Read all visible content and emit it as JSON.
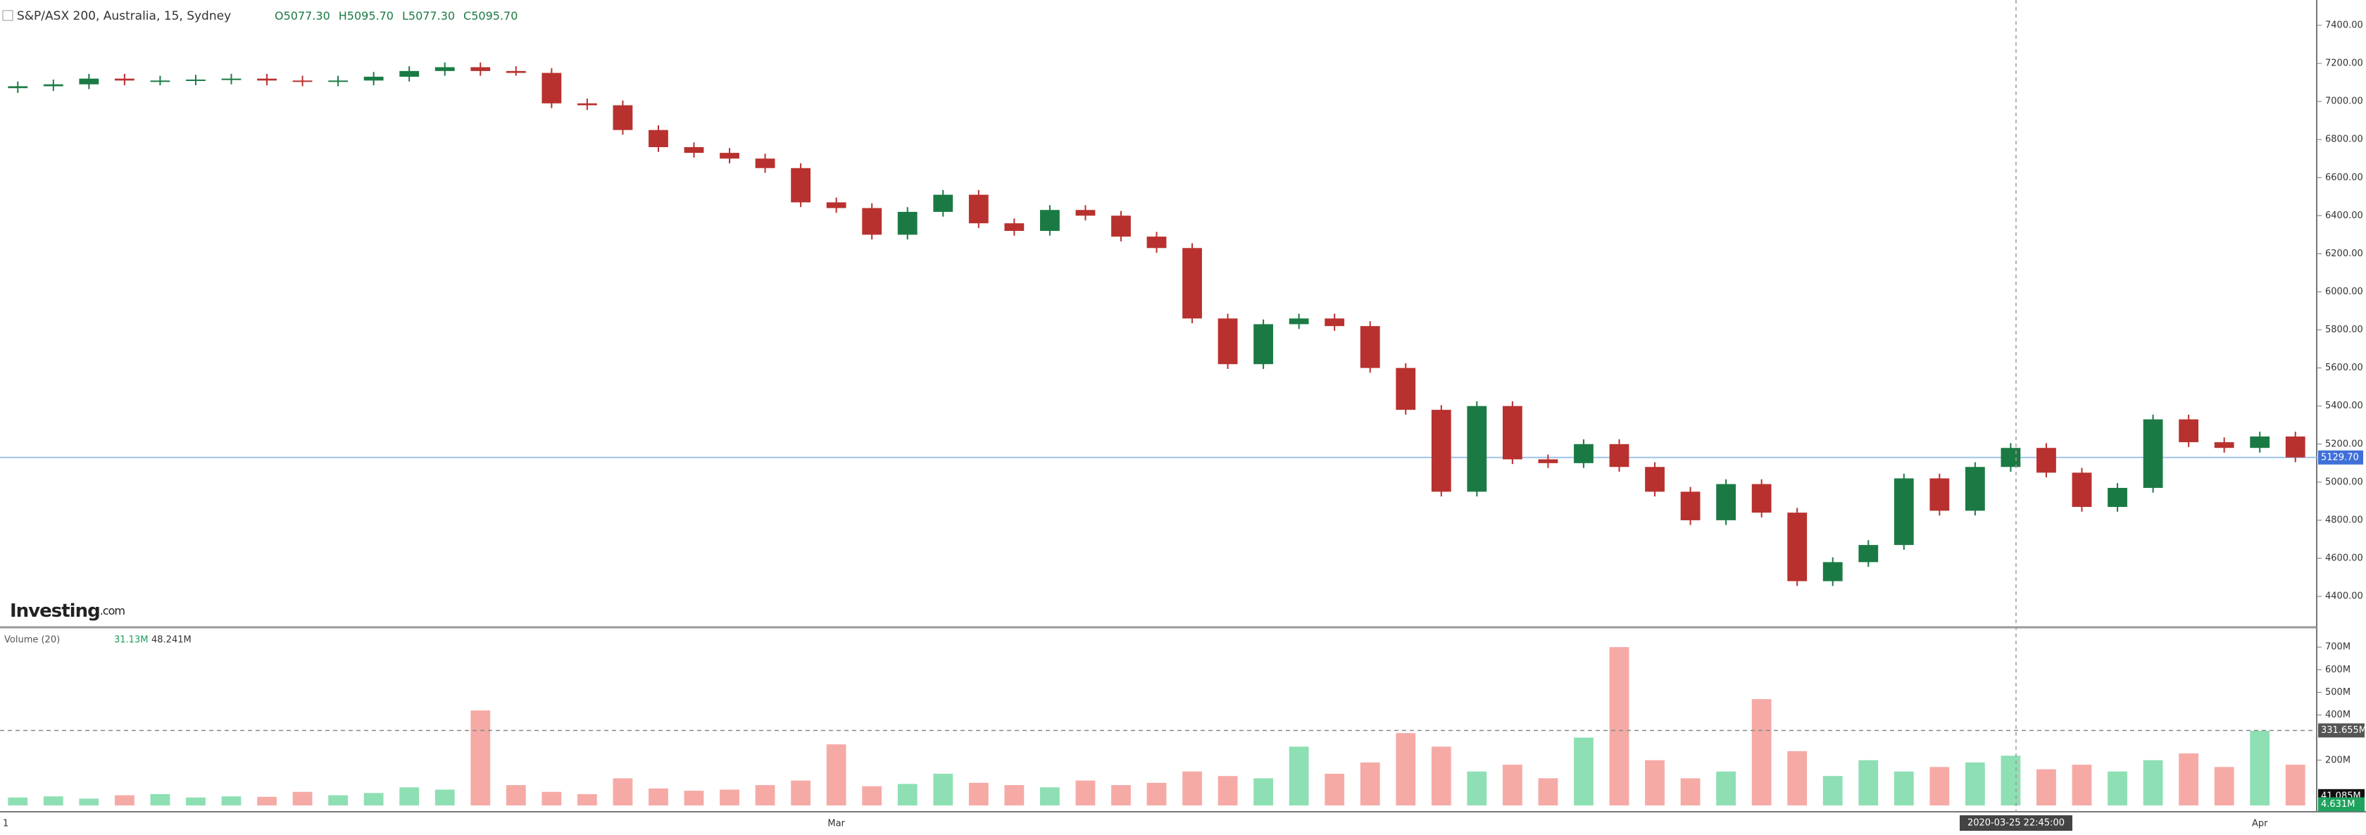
{
  "chart_data": {
    "type": "candlestick",
    "title": "S&P/ASX 200, Australia, 15, Sydney",
    "ohlc_labels": [
      "O5077.30",
      "H5095.70",
      "L5077.30",
      "C5095.70"
    ],
    "logo": [
      "Investing",
      ".com"
    ],
    "categories": [
      "1",
      null,
      null,
      null,
      null,
      null,
      null,
      null,
      null,
      null,
      null,
      null,
      null,
      null,
      null,
      null,
      null,
      null,
      null,
      null,
      null,
      null,
      null,
      "Mar",
      null,
      null,
      null,
      null,
      null,
      null,
      null,
      null,
      null,
      null,
      null,
      null,
      null,
      null,
      null,
      null,
      null,
      null,
      null,
      null,
      null,
      null,
      null,
      null,
      null,
      null,
      null,
      null,
      null,
      null,
      null,
      null,
      null,
      null,
      null,
      null,
      null,
      null,
      null,
      "Apr",
      null
    ],
    "open": [
      7070,
      7080,
      7090,
      7120,
      7110,
      7110,
      7115,
      7120,
      7110,
      7105,
      7110,
      7130,
      7160,
      7180,
      7160,
      7150,
      6990,
      6980,
      6850,
      6760,
      6730,
      6700,
      6650,
      6470,
      6440,
      6300,
      6420,
      6510,
      6360,
      6320,
      6430,
      6400,
      6290,
      6230,
      5860,
      5620,
      5830,
      5860,
      5820,
      5600,
      5380,
      4950,
      5400,
      5120,
      5100,
      5200,
      5080,
      4950,
      4800,
      4990,
      4840,
      4480,
      4580,
      4670,
      5020,
      4850,
      5080,
      5180,
      5050,
      4870,
      4970,
      5330,
      5210,
      5180,
      5240
    ],
    "high": [
      7105,
      7115,
      7145,
      7145,
      7135,
      7140,
      7145,
      7145,
      7135,
      7135,
      7155,
      7185,
      7205,
      7205,
      7185,
      7175,
      7015,
      7005,
      6875,
      6785,
      6755,
      6725,
      6675,
      6495,
      6465,
      6445,
      6535,
      6535,
      6385,
      6455,
      6455,
      6425,
      6315,
      6255,
      5885,
      5855,
      5885,
      5885,
      5845,
      5625,
      5405,
      5425,
      5425,
      5145,
      5225,
      5225,
      5105,
      4975,
      5015,
      5015,
      4865,
      4605,
      4695,
      5045,
      5045,
      5105,
      5205,
      5205,
      5075,
      4995,
      5355,
      5355,
      5235,
      5265,
      5265
    ],
    "low": [
      7045,
      7055,
      7065,
      7085,
      7085,
      7085,
      7090,
      7085,
      7080,
      7080,
      7085,
      7105,
      7135,
      7135,
      7135,
      6965,
      6955,
      6825,
      6735,
      6705,
      6675,
      6625,
      6445,
      6415,
      6275,
      6275,
      6395,
      6335,
      6295,
      6295,
      6375,
      6265,
      6205,
      5835,
      5595,
      5595,
      5805,
      5795,
      5575,
      5355,
      4925,
      4925,
      5095,
      5075,
      5075,
      5055,
      4925,
      4775,
      4775,
      4815,
      4455,
      4455,
      4555,
      4645,
      4825,
      4825,
      5055,
      5025,
      4845,
      4845,
      4945,
      5185,
      5155,
      5155,
      5105
    ],
    "close": [
      7080,
      7090,
      7120,
      7110,
      7110,
      7115,
      7120,
      7110,
      7105,
      7110,
      7130,
      7160,
      7180,
      7160,
      7150,
      6990,
      6980,
      6850,
      6760,
      6730,
      6700,
      6650,
      6470,
      6440,
      6300,
      6420,
      6510,
      6360,
      6320,
      6430,
      6400,
      6290,
      6230,
      5860,
      5620,
      5830,
      5860,
      5820,
      5600,
      5380,
      4950,
      5400,
      5120,
      5100,
      5200,
      5080,
      4950,
      4800,
      4990,
      4840,
      4480,
      4580,
      4670,
      5020,
      4850,
      5080,
      5180,
      5050,
      4870,
      4970,
      5330,
      5210,
      5180,
      5240,
      5130
    ],
    "up_color": "#1b7a44",
    "down_color": "#b8312f",
    "ylim": [
      4245,
      7533
    ],
    "yticks": [
      {
        "value": 4400,
        "label": "4400.00"
      },
      {
        "value": 4600,
        "label": "4600.00"
      },
      {
        "value": 4800,
        "label": "4800.00"
      },
      {
        "value": 5000,
        "label": "5000.00"
      },
      {
        "value": 5200,
        "label": "5200.00"
      },
      {
        "value": 5400,
        "label": "5400.00"
      },
      {
        "value": 5600,
        "label": "5600.00"
      },
      {
        "value": 5800,
        "label": "5800.00"
      },
      {
        "value": 6000,
        "label": "6000.00"
      },
      {
        "value": 6200,
        "label": "6200.00"
      },
      {
        "value": 6400,
        "label": "6400.00"
      },
      {
        "value": 6600,
        "label": "6600.00"
      },
      {
        "value": 6800,
        "label": "6800.00"
      },
      {
        "value": 7000,
        "label": "7000.00"
      },
      {
        "value": 7200,
        "label": "7200.00"
      },
      {
        "value": 7400,
        "label": "7400.00"
      }
    ],
    "last_price": {
      "value": 5129.7,
      "label": "5129.70"
    },
    "volume_title": "Volume (20)",
    "volume_header_values": [
      "31.13M",
      "48.241M"
    ],
    "volume": [
      35,
      40,
      30,
      45,
      50,
      35,
      40,
      38,
      60,
      45,
      55,
      80,
      70,
      420,
      90,
      60,
      50,
      120,
      75,
      65,
      70,
      90,
      110,
      270,
      85,
      95,
      140,
      100,
      90,
      80,
      110,
      90,
      100,
      150,
      130,
      120,
      260,
      140,
      190,
      320,
      260,
      150,
      180,
      120,
      300,
      700,
      200,
      120,
      150,
      470,
      240,
      130,
      200,
      150,
      170,
      190,
      220,
      160,
      180,
      150,
      200,
      230,
      170,
      330,
      180
    ],
    "volume_up_color": "#8edfb4",
    "volume_down_color": "#f6aaa6",
    "y2lim": [
      -28,
      772
    ],
    "y2ticks": [
      {
        "value": 200,
        "label": "200M"
      },
      {
        "value": 400,
        "label": "400M"
      },
      {
        "value": 500,
        "label": "500M"
      },
      {
        "value": 600,
        "label": "600M"
      },
      {
        "value": 700,
        "label": "700M"
      }
    ],
    "volume_labels": [
      {
        "value": 331.655,
        "label": "331.655M"
      },
      {
        "value": 41.085,
        "label": "41.085M"
      },
      {
        "value": 4.631,
        "label": "4.631M"
      }
    ],
    "crosshair_label": "2020-03-25 22:45:00"
  }
}
